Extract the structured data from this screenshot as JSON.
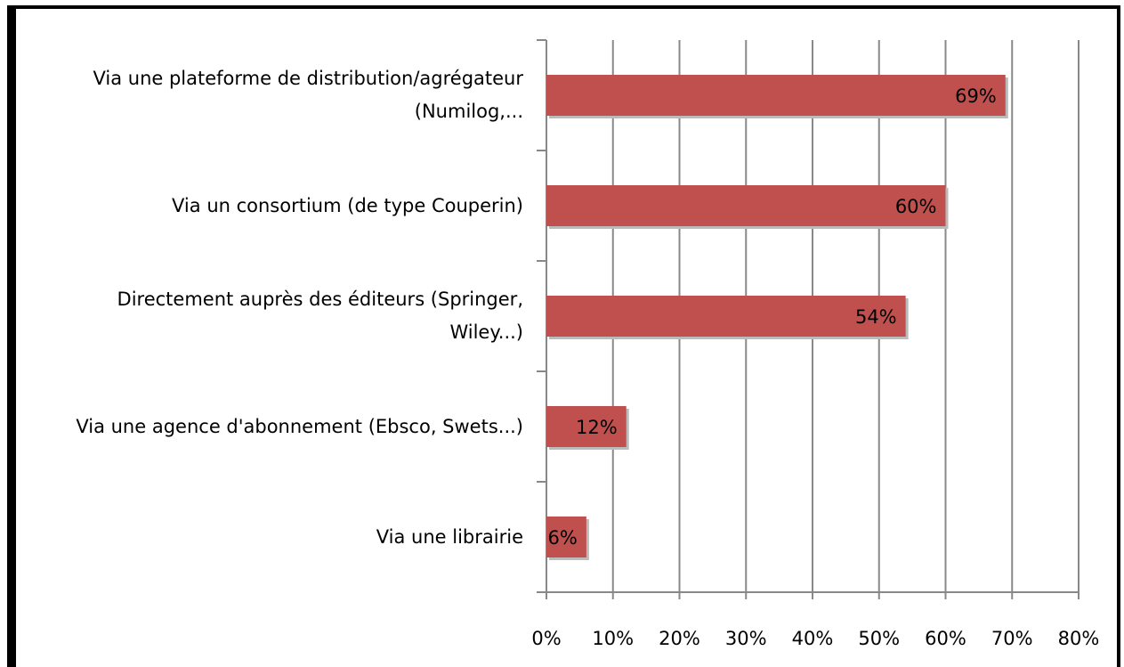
{
  "chart_data": {
    "type": "bar",
    "orientation": "horizontal",
    "categories": [
      "Via une plateforme de distribution/agrégateur (Numilog,...",
      "Via un consortium (de type Couperin)",
      "Directement auprès des éditeurs (Springer, Wiley...)",
      "Via une agence d'abonnement (Ebsco, Swets...)",
      "Via une librairie"
    ],
    "values": [
      69,
      60,
      54,
      12,
      6
    ],
    "value_labels": [
      "69%",
      "60%",
      "54%",
      "12%",
      "6%"
    ],
    "color": "#c0504d",
    "xlim": [
      0,
      80
    ],
    "xticks": [
      {
        "value": 0,
        "label": "0%"
      },
      {
        "value": 10,
        "label": "10%"
      },
      {
        "value": 20,
        "label": "20%"
      },
      {
        "value": 30,
        "label": "30%"
      },
      {
        "value": 40,
        "label": "40%"
      },
      {
        "value": 50,
        "label": "50%"
      },
      {
        "value": 60,
        "label": "60%"
      },
      {
        "value": 70,
        "label": "70%"
      },
      {
        "value": 80,
        "label": "80%"
      }
    ],
    "grid": true
  }
}
